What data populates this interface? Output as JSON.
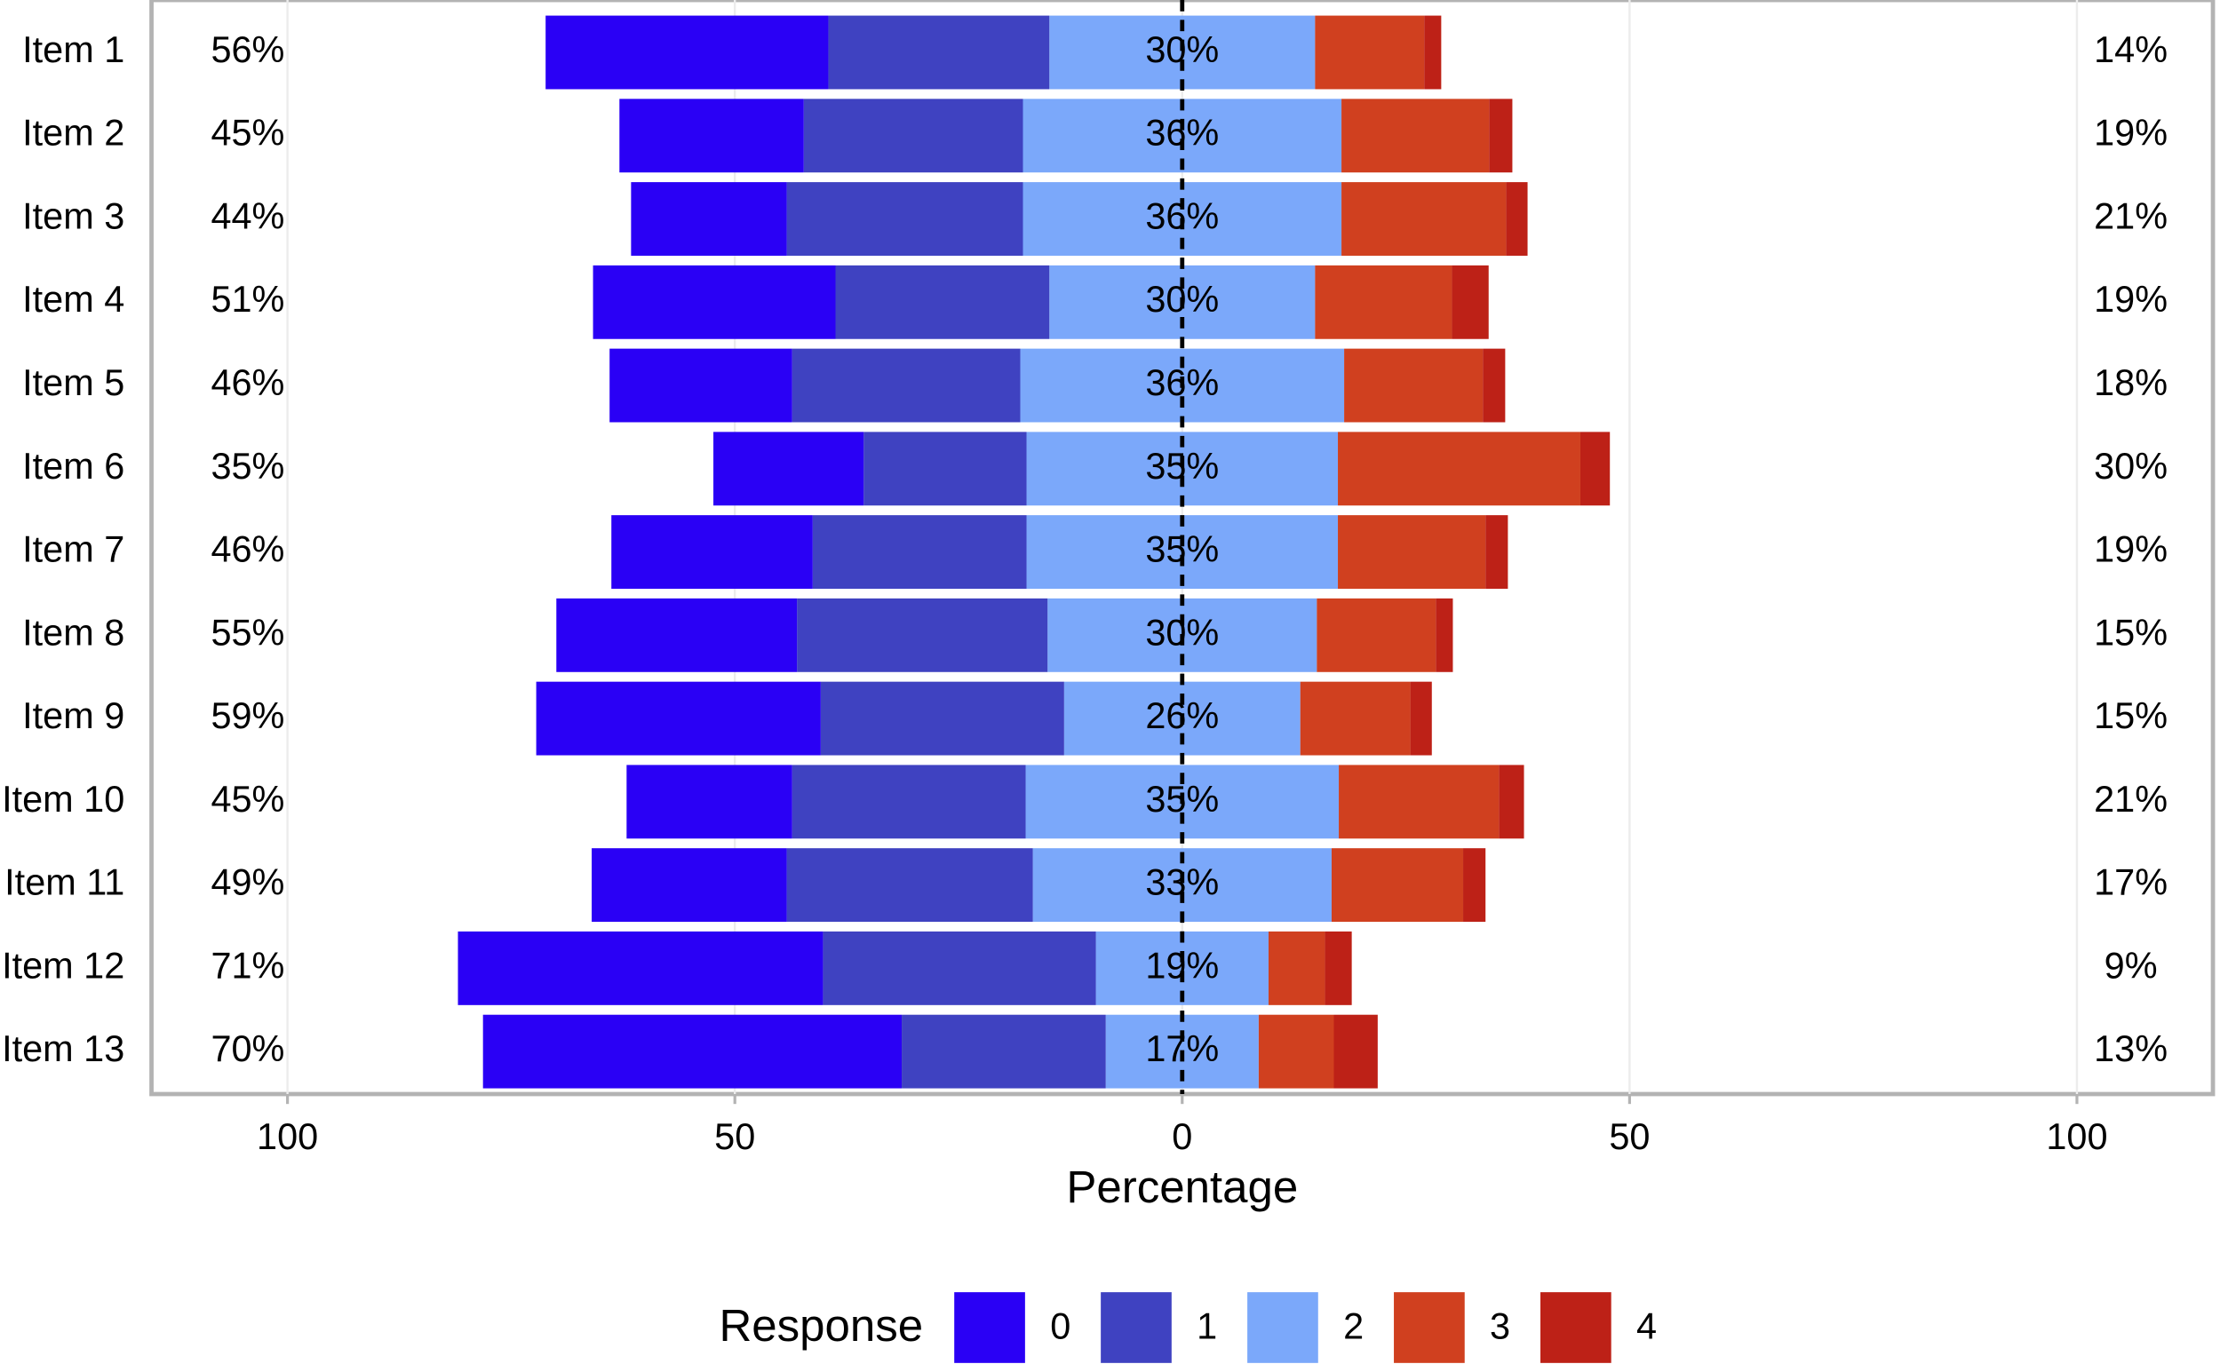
{
  "chart_data": {
    "type": "diverging-bar",
    "categories": [
      "Item 1",
      "Item 2",
      "Item 3",
      "Item 4",
      "Item 5",
      "Item 6",
      "Item 7",
      "Item 8",
      "Item 9",
      "Item 10",
      "Item 11",
      "Item 12",
      "Item 13"
    ],
    "series": [
      {
        "name": "0",
        "color": "#2a00f5",
        "values": [
          31.6,
          20.6,
          17.4,
          27.1,
          20.4,
          16.8,
          22.5,
          26.9,
          31.8,
          18.5,
          21.8,
          40.8,
          46.8
        ]
      },
      {
        "name": "1",
        "color": "#3f42c1",
        "values": [
          24.7,
          24.5,
          26.4,
          23.9,
          25.5,
          18.2,
          23.9,
          28.0,
          27.2,
          26.1,
          27.5,
          30.5,
          22.8
        ]
      },
      {
        "name": "2",
        "color": "#7ba8fa",
        "values": [
          29.7,
          35.6,
          35.6,
          29.7,
          36.2,
          34.8,
          34.8,
          30.1,
          26.4,
          35.0,
          33.4,
          19.3,
          17.1
        ],
        "value_labels": [
          "30%",
          "36%",
          "36%",
          "30%",
          "36%",
          "35%",
          "35%",
          "30%",
          "26%",
          "35%",
          "33%",
          "19%",
          "17%"
        ]
      },
      {
        "name": "3",
        "color": "#d0401f",
        "values": [
          12.2,
          16.5,
          18.4,
          15.3,
          15.5,
          27.1,
          16.5,
          13.3,
          12.3,
          17.9,
          14.7,
          6.3,
          8.4
        ]
      },
      {
        "name": "4",
        "color": "#bd2117",
        "values": [
          1.9,
          2.6,
          2.4,
          4.1,
          2.5,
          3.3,
          2.5,
          1.9,
          2.4,
          2.8,
          2.5,
          3.0,
          4.9
        ]
      }
    ],
    "left_labels": [
      "56%",
      "45%",
      "44%",
      "51%",
      "46%",
      "35%",
      "46%",
      "55%",
      "59%",
      "45%",
      "49%",
      "71%",
      "70%"
    ],
    "right_labels": [
      "14%",
      "19%",
      "21%",
      "19%",
      "18%",
      "30%",
      "19%",
      "15%",
      "15%",
      "21%",
      "17%",
      "9%",
      "13%"
    ],
    "xlabel": "Percentage",
    "xlim": [
      -115.2,
      115.2
    ],
    "xticks": [
      {
        "value": -100,
        "label": "100"
      },
      {
        "value": -50,
        "label": "50"
      },
      0,
      50,
      100
    ],
    "grid": true,
    "legend_title": "Response",
    "legend": "bottom"
  }
}
